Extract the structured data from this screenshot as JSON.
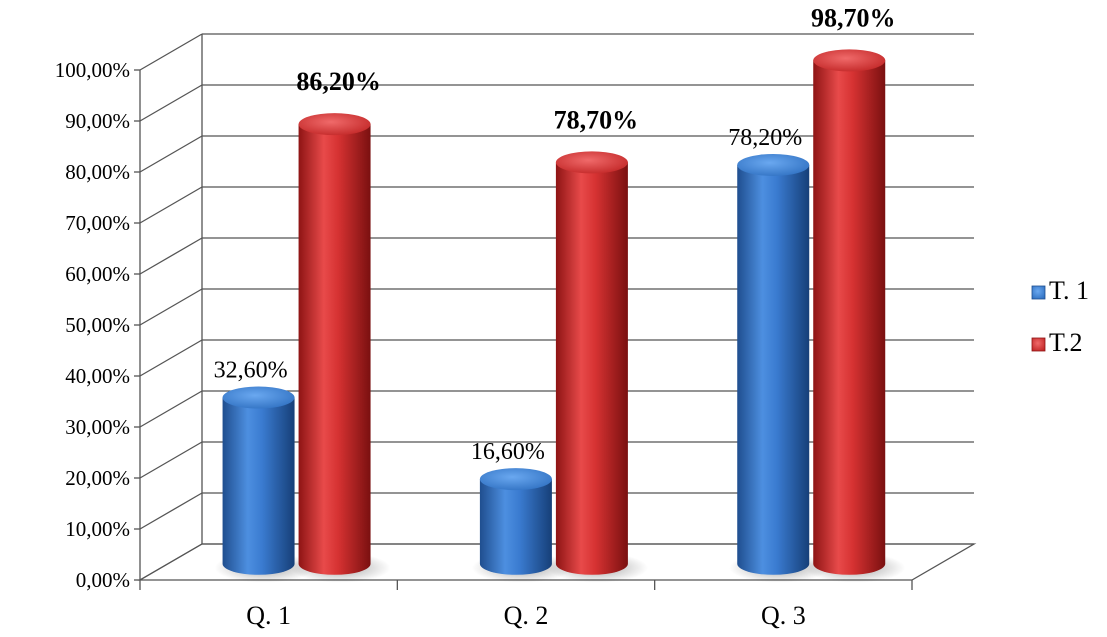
{
  "chart_data": {
    "type": "bar",
    "categories": [
      "Q. 1",
      "Q. 2",
      "Q. 3"
    ],
    "series": [
      {
        "name": "T. 1",
        "values": [
          32.6,
          16.6,
          78.2
        ],
        "labels": [
          "32,60%",
          "16,60%",
          "78,20%"
        ],
        "label_bold": false
      },
      {
        "name": "T.2",
        "values": [
          86.2,
          78.7,
          98.7
        ],
        "labels": [
          "86,20%",
          "78,70%",
          "98,70%"
        ],
        "label_bold": true
      }
    ],
    "y_ticks": [
      "0,00%",
      "10,00%",
      "20,00%",
      "30,00%",
      "40,00%",
      "50,00%",
      "60,00%",
      "70,00%",
      "80,00%",
      "90,00%",
      "100,00%"
    ],
    "ylim": [
      0,
      100
    ],
    "grid": true,
    "legend": "right",
    "style": "3d-cylinder",
    "colors": {
      "T. 1": "#2e6fc0",
      "T.2": "#c92a2a"
    }
  }
}
